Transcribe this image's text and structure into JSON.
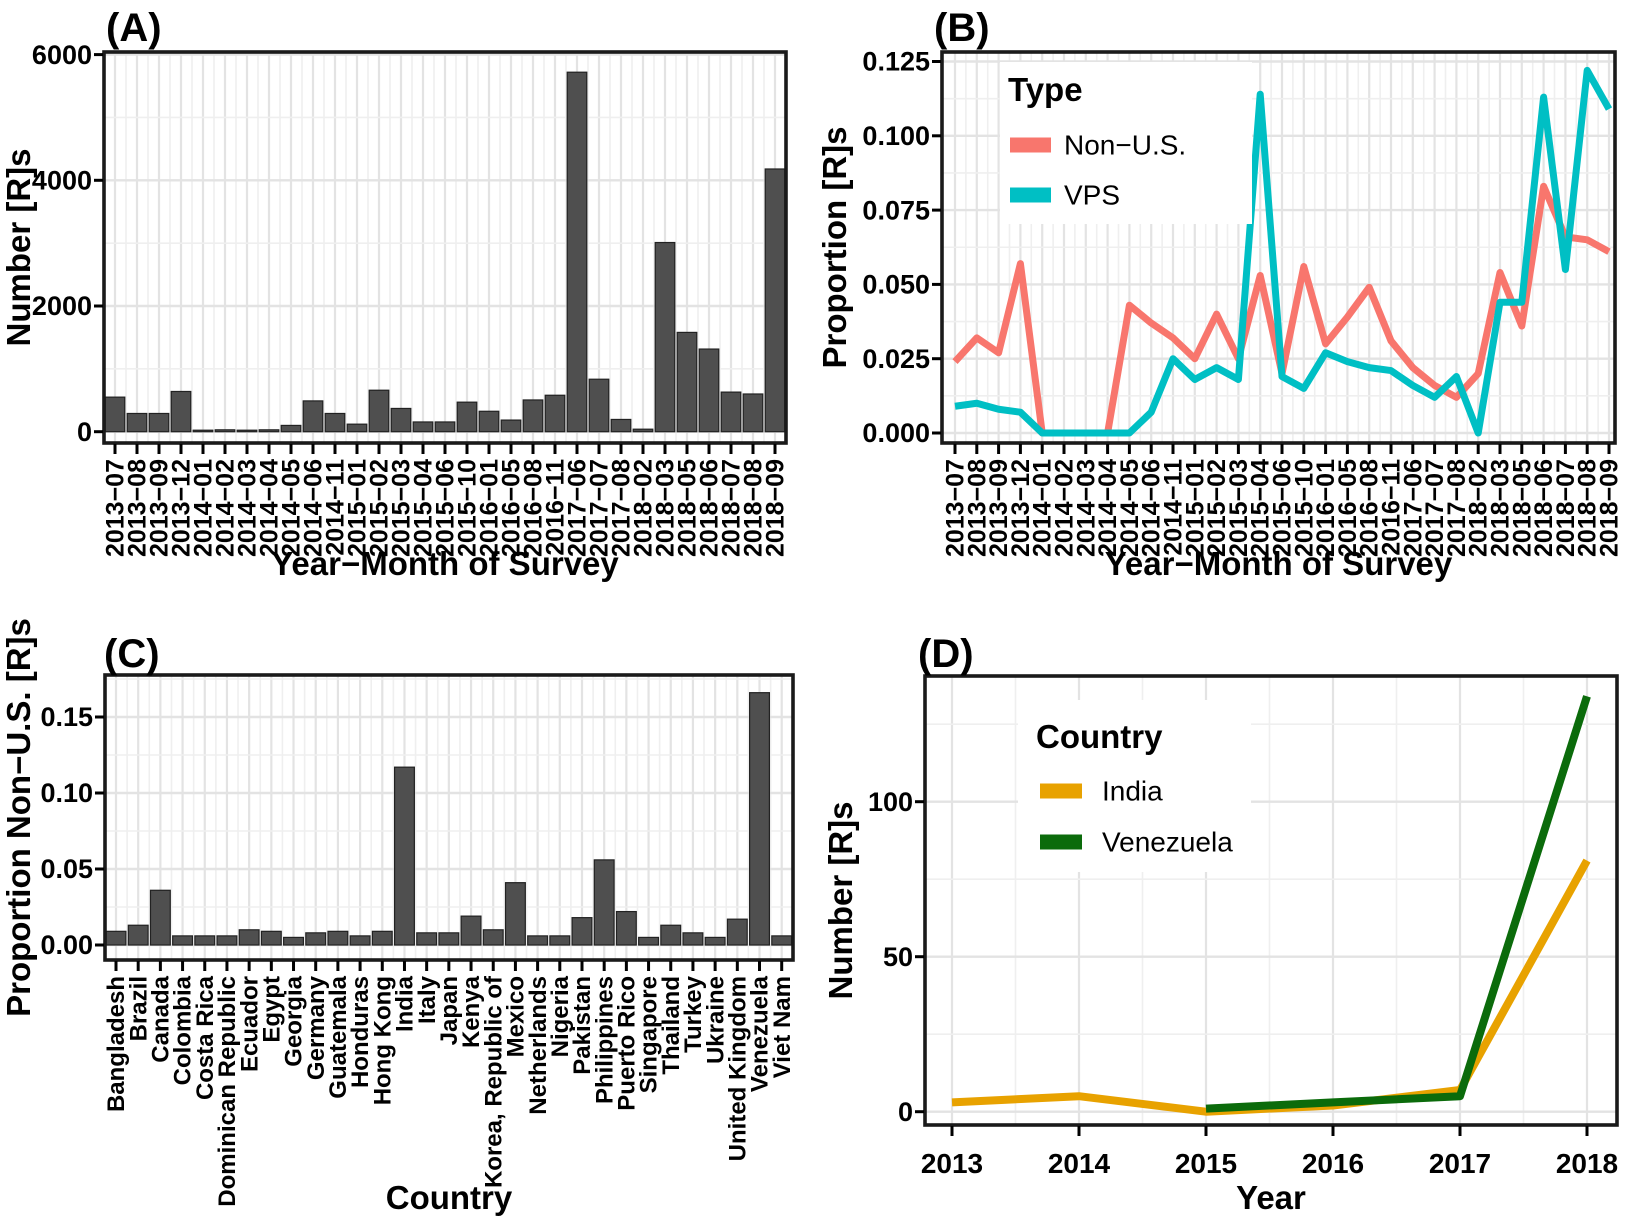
{
  "figure": {
    "style": {
      "background": "#ffffff",
      "grid_major": "#e3e3e3",
      "grid_minor": "#efefef",
      "border": "#1a1a1a",
      "text": "#000000",
      "bar_fill": "#4f4f4f",
      "bar_stroke": "#222222"
    }
  },
  "chart_data": [
    {
      "id": "A",
      "panel_label": "(A)",
      "type": "bar",
      "xlabel": "Year−Month of Survey",
      "ylabel": "Number [R]s",
      "ylim": [
        0,
        6000
      ],
      "yticks": [
        0,
        2000,
        4000,
        6000
      ],
      "ytick_labels": [
        "0",
        "2000",
        "4000",
        "6000"
      ],
      "categories": [
        "2013−07",
        "2013−08",
        "2013−09",
        "2013−12",
        "2014−01",
        "2014−02",
        "2014−03",
        "2014−04",
        "2014−05",
        "2014−06",
        "2014−11",
        "2015−01",
        "2015−02",
        "2015−03",
        "2015−04",
        "2015−06",
        "2015−10",
        "2016−01",
        "2016−05",
        "2016−08",
        "2016−11",
        "2017−06",
        "2017−07",
        "2017−08",
        "2018−02",
        "2018−03",
        "2018−05",
        "2018−06",
        "2018−07",
        "2018−08",
        "2018−09"
      ],
      "values": [
        550,
        290,
        290,
        640,
        15,
        30,
        15,
        30,
        100,
        490,
        290,
        120,
        660,
        370,
        155,
        155,
        470,
        325,
        185,
        505,
        580,
        5720,
        835,
        195,
        40,
        3010,
        1580,
        1315,
        630,
        600,
        4180
      ]
    },
    {
      "id": "B",
      "panel_label": "(B)",
      "type": "line",
      "xlabel": "Year−Month of Survey",
      "ylabel": "Proportion [R]s",
      "ylim": [
        0,
        0.125
      ],
      "yticks": [
        0,
        0.025,
        0.05,
        0.075,
        0.1,
        0.125
      ],
      "ytick_labels": [
        "0.000",
        "0.025",
        "0.050",
        "0.075",
        "0.100",
        "0.125"
      ],
      "legend_title": "Type",
      "legend_position": "top-left-inside",
      "categories": [
        "2013−07",
        "2013−08",
        "2013−09",
        "2013−12",
        "2014−01",
        "2014−02",
        "2014−03",
        "2014−04",
        "2014−05",
        "2014−06",
        "2014−11",
        "2015−01",
        "2015−02",
        "2015−03",
        "2015−04",
        "2015−06",
        "2015−10",
        "2016−01",
        "2016−05",
        "2016−08",
        "2016−11",
        "2017−06",
        "2017−07",
        "2017−08",
        "2018−02",
        "2018−03",
        "2018−05",
        "2018−06",
        "2018−07",
        "2018−08",
        "2018−09"
      ],
      "series": [
        {
          "name": "Non−U.S.",
          "color": "#F8766D",
          "values": [
            0.024,
            0.032,
            0.027,
            0.057,
            0,
            0,
            0,
            0,
            0.043,
            0.037,
            0.032,
            0.025,
            0.04,
            0.025,
            0.053,
            0.02,
            0.056,
            0.03,
            0.039,
            0.049,
            0.031,
            0.022,
            0.016,
            0.012,
            0.02,
            0.054,
            0.036,
            0.083,
            0.066,
            0.065,
            0.061
          ]
        },
        {
          "name": "VPS",
          "color": "#00BFC4",
          "values": [
            0.009,
            0.01,
            0.008,
            0.007,
            0,
            0,
            0,
            0,
            0,
            0.007,
            0.025,
            0.018,
            0.022,
            0.018,
            0.114,
            0.019,
            0.015,
            0.027,
            0.024,
            0.022,
            0.021,
            0.016,
            0.012,
            0.019,
            0,
            0.044,
            0.044,
            0.113,
            0.055,
            0.122,
            0.109
          ]
        }
      ]
    },
    {
      "id": "C",
      "panel_label": "(C)",
      "type": "bar",
      "xlabel": "Country",
      "ylabel": "Proportion Non−U.S. [R]s",
      "ylim": [
        0,
        0.175
      ],
      "yticks": [
        0,
        0.05,
        0.1,
        0.15
      ],
      "ytick_labels": [
        "0.00",
        "0.05",
        "0.10",
        "0.15"
      ],
      "categories": [
        "Bangladesh",
        "Brazil",
        "Canada",
        "Colombia",
        "Costa Rica",
        "Dominican Republic",
        "Ecuador",
        "Egypt",
        "Georgia",
        "Germany",
        "Guatemala",
        "Honduras",
        "Hong Kong",
        "India",
        "Italy",
        "Japan",
        "Kenya",
        "Korea, Republic of",
        "Mexico",
        "Netherlands",
        "Nigeria",
        "Pakistan",
        "Philippines",
        "Puerto Rico",
        "Singapore",
        "Thailand",
        "Turkey",
        "Ukraine",
        "United Kingdom",
        "Venezuela",
        "Viet Nam"
      ],
      "values": [
        0.009,
        0.013,
        0.036,
        0.006,
        0.006,
        0.006,
        0.01,
        0.009,
        0.005,
        0.008,
        0.009,
        0.006,
        0.009,
        0.117,
        0.008,
        0.008,
        0.019,
        0.01,
        0.041,
        0.006,
        0.006,
        0.018,
        0.056,
        0.022,
        0.005,
        0.013,
        0.008,
        0.005,
        0.017,
        0.166,
        0.006
      ]
    },
    {
      "id": "D",
      "panel_label": "(D)",
      "type": "line",
      "xlabel": "Year",
      "ylabel": "Number [R]s",
      "ylim": [
        0,
        140
      ],
      "yticks": [
        0,
        50,
        100
      ],
      "ytick_labels": [
        "0",
        "50",
        "100"
      ],
      "legend_title": "Country",
      "legend_position": "top-left-inside",
      "x": [
        2013,
        2014,
        2015,
        2016,
        2017,
        2018
      ],
      "xtick_labels": [
        "2013",
        "2014",
        "2015",
        "2016",
        "2017",
        "2018"
      ],
      "series": [
        {
          "name": "India",
          "color": "#E8A200",
          "values": [
            3,
            5,
            0,
            2,
            7,
            81
          ]
        },
        {
          "name": "Venezuela",
          "color": "#0B6B0B",
          "values": [
            null,
            null,
            1,
            3,
            5,
            134
          ]
        }
      ]
    }
  ]
}
